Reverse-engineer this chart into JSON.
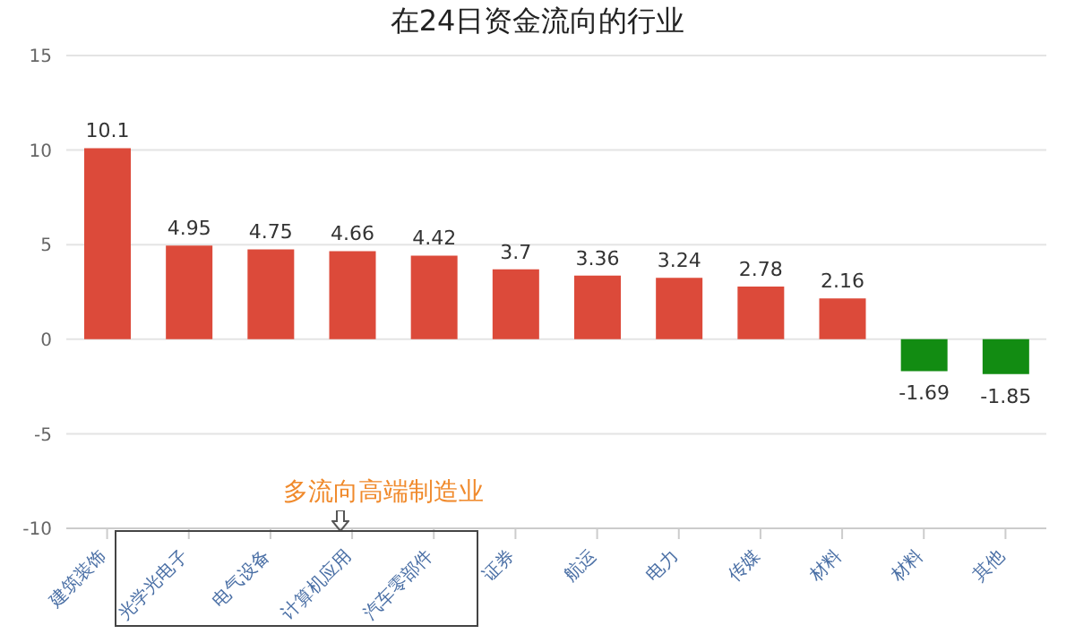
{
  "chart_data": {
    "type": "bar",
    "title": "在24日资金流向的行业",
    "categories": [
      "建筑装饰",
      "光学光电子",
      "电气设备",
      "计算机应用",
      "汽车零部件",
      "证券",
      "航运",
      "电力",
      "传媒",
      "材料",
      "材料",
      "其他"
    ],
    "values": [
      10.1,
      4.95,
      4.75,
      4.66,
      4.42,
      3.7,
      3.36,
      3.24,
      2.78,
      2.16,
      -1.69,
      -1.85
    ],
    "colors": [
      "#dc4a3a",
      "#dc4a3a",
      "#dc4a3a",
      "#dc4a3a",
      "#dc4a3a",
      "#dc4a3a",
      "#dc4a3a",
      "#dc4a3a",
      "#dc4a3a",
      "#dc4a3a",
      "#128c12",
      "#128c12"
    ],
    "ylim": [
      -10,
      15
    ],
    "yticks": [
      -10,
      -5,
      0,
      5,
      10,
      15
    ],
    "grid": "y",
    "data_labels": true,
    "annotations": [
      "多流向高端制造业"
    ]
  }
}
